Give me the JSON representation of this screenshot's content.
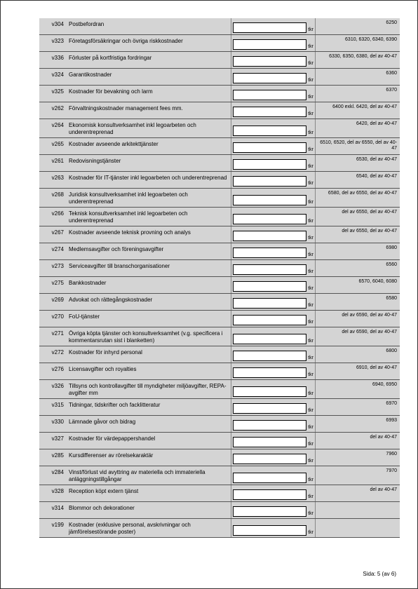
{
  "colors": {
    "page_bg": "#ffffff",
    "row_bg": "#d4d4d4",
    "border": "#555555",
    "input_bg": "#ffffff",
    "input_border": "#000000",
    "text": "#000000"
  },
  "typography": {
    "code_fontsize_pt": 6,
    "label_fontsize_pt": 6,
    "note_fontsize_pt": 5,
    "footer_fontsize_pt": 6
  },
  "unit": "tkr",
  "footer": "Sida: 5 (av 6)",
  "rows": [
    {
      "code": "v304",
      "label": "Postbefordran",
      "note": "6250"
    },
    {
      "code": "v323",
      "label": "Företagsförsäkringar och övriga riskkostnader",
      "note": "6310, 6320, 6340, 6390"
    },
    {
      "code": "v336",
      "label": "Förluster på kortfristiga fordringar",
      "note": "6330, 6350, 6380, del av 40-47"
    },
    {
      "code": "v324",
      "label": "Garantikostnader",
      "note": "6360"
    },
    {
      "code": "v325",
      "label": "Kostnader för bevakning och larm",
      "note": "6370"
    },
    {
      "code": "v262",
      "label": "Förvaltningskostnader management fees mm.",
      "note": "6400 exkl. 6420, del av 40-47"
    },
    {
      "code": "v264",
      "label": "Ekonomisk konsultverksamhet inkl legoarbeten och underentreprenad",
      "note": "6420, del av 40-47"
    },
    {
      "code": "v265",
      "label": "Kostnader avseende arkitekttjänster",
      "note": "6510, 6520, del av 6550, del av 40-47"
    },
    {
      "code": "v261",
      "label": "Redovisningstjänster",
      "note": "6530, del av 40-47"
    },
    {
      "code": "v263",
      "label": "Kostnader för IT-tjänster inkl legoarbeten och underentreprenad",
      "note": "6540, del av 40-47"
    },
    {
      "code": "v268",
      "label": "Juridisk konsultverksamhet inkl legoarbeten och underentreprenad",
      "note": "6580, del av 6550, del av 40-47"
    },
    {
      "code": "v266",
      "label": "Teknisk konsultverksamhet inkl legoarbeten och underentreprenad",
      "note": "del av 6550, del av 40-47"
    },
    {
      "code": "v267",
      "label": "Kostnader avseende teknisk provning och analys",
      "note": "del av 6550, del av 40-47"
    },
    {
      "code": "v274",
      "label": "Medlemsavgifter och föreningsavgifter",
      "note": "6980"
    },
    {
      "code": "v273",
      "label": "Serviceavgifter till branschorganisationer",
      "note": "6560"
    },
    {
      "code": "v275",
      "label": "Bankkostnader",
      "note": "6570, 6040, 6080"
    },
    {
      "code": "v269",
      "label": "Advokat och rättegångskostnader",
      "note": "6580"
    },
    {
      "code": "v270",
      "label": "FoU-tjänster",
      "note": "del av 6590, del av 40-47"
    },
    {
      "code": "v271",
      "label": "Övriga köpta tjänster och konsultverksamhet (v.g. specificera i kommentarsrutan sist i blanketten)",
      "note": "del av 6590, del av 40-47"
    },
    {
      "code": "v272",
      "label": "Kostnader för inhyrd personal",
      "note": "6800"
    },
    {
      "code": "v276",
      "label": "Licensavgifter och royalties",
      "note": "6910, del av 40-47"
    },
    {
      "code": "v326",
      "label": "Tillsyns och kontrollavgifter till myndigheter miljöavgifter, REPA-avgifter mm",
      "note": "6940, 6950"
    },
    {
      "code": "v315",
      "label": "Tidningar, tidskrifter och facklitteratur",
      "note": "6970"
    },
    {
      "code": "v330",
      "label": "Lämnade gåvor och bidrag",
      "note": "6993"
    },
    {
      "code": "v327",
      "label": "Kostnader för värdepappershandel",
      "note": "del av 40-47"
    },
    {
      "code": "v285",
      "label": "Kursdifferenser av rörelsekaraktär",
      "note": "7960"
    },
    {
      "code": "v284",
      "label": "Vinst/förlust vid avyttring av materiella och immateriella anläggningstillgångar",
      "note": "7970"
    },
    {
      "code": "v328",
      "label": "Reception köpt extern tjänst",
      "note": "del av 40-47"
    },
    {
      "code": "v314",
      "label": "Blommor och dekorationer",
      "note": ""
    },
    {
      "code": "v199",
      "label": "Kostnader (exklusive personal, avskrivningar och jämförelsestörande poster)",
      "note": ""
    }
  ]
}
